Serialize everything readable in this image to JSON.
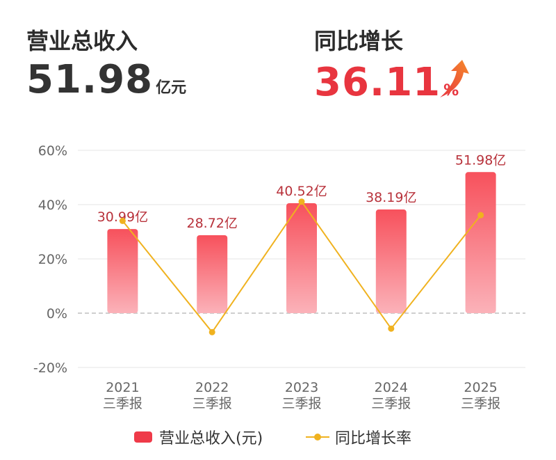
{
  "kpi": {
    "revenue_label": "营业总收入",
    "revenue_value": "51.98",
    "revenue_unit": "亿元",
    "growth_label": "同比增长",
    "growth_value": "36.11",
    "growth_unit": "%"
  },
  "colors": {
    "bar_top": "#f7515c",
    "bar_bottom": "#fbb2b9",
    "line": "#f0b21f",
    "growth": "#e8353f"
  },
  "chart_data": {
    "type": "bar",
    "categories": [
      [
        "2021",
        "三季报"
      ],
      [
        "2022",
        "三季报"
      ],
      [
        "2023",
        "三季报"
      ],
      [
        "2024",
        "三季报"
      ],
      [
        "2025",
        "三季报"
      ]
    ],
    "series": [
      {
        "name": "营业总收入(元)",
        "kind": "bar",
        "values": [
          30.99,
          28.72,
          40.52,
          38.19,
          51.98
        ],
        "labels": [
          "30.99亿",
          "28.72亿",
          "40.52亿",
          "38.19亿",
          "51.98亿"
        ]
      },
      {
        "name": "同比增长率",
        "kind": "line",
        "values": [
          34,
          -7,
          41.1,
          -5.7,
          36.11
        ]
      }
    ],
    "y_ticks": [
      "60%",
      "40%",
      "20%",
      "0%",
      "-20%"
    ],
    "ylim_percent": [
      -20,
      60
    ],
    "bar_scale_max": 60,
    "legend": [
      "营业总收入(元)",
      "同比增长率"
    ]
  }
}
